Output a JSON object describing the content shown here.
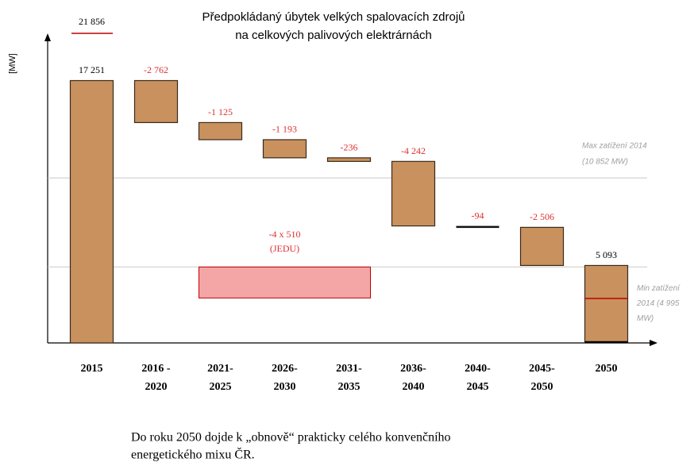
{
  "chart_data": {
    "type": "waterfall",
    "title": [
      "Předpokládaný úbytek velkých spalovacích zdrojů",
      "na celkových palivových elektrárnách"
    ],
    "y_label": "[MW]",
    "categories": [
      [
        "2015"
      ],
      [
        "2016 -",
        "2020"
      ],
      [
        "2021-",
        "2025"
      ],
      [
        "2026-",
        "2030"
      ],
      [
        "2031-",
        "2035"
      ],
      [
        "2036-",
        "2040"
      ],
      [
        "2040-",
        "2045"
      ],
      [
        "2045-",
        "2050"
      ],
      [
        "2050"
      ]
    ],
    "values": [
      17251,
      -2762,
      -1125,
      -1193,
      -236,
      -4242,
      -94,
      -2506,
      5093
    ],
    "value_labels": [
      "17 251",
      "-2 762",
      "-1 125",
      "-1 193",
      "-236",
      "-4 242",
      "-94",
      "-2 506",
      "5 093"
    ],
    "total_label": {
      "value": 21856,
      "label": "21 856"
    },
    "color": "#c8915e",
    "ylim": [
      0,
      20200
    ],
    "reference_lines": [
      {
        "value": 10852,
        "label": [
          "Max zatížení 2014",
          "(10 852 MW)"
        ]
      },
      {
        "value": 4995,
        "label": [
          "Min zatížení",
          "2014 (4 995",
          "MW)"
        ]
      }
    ],
    "band_block": {
      "value": -2040,
      "label": [
        "-4 x 510",
        "(JEDU)"
      ],
      "color": "#f4a6a6"
    },
    "footer": [
      "Do roku 2050 dojde k „obnově“ prakticky celého konvenčního",
      "energetického mixu ČR."
    ]
  }
}
